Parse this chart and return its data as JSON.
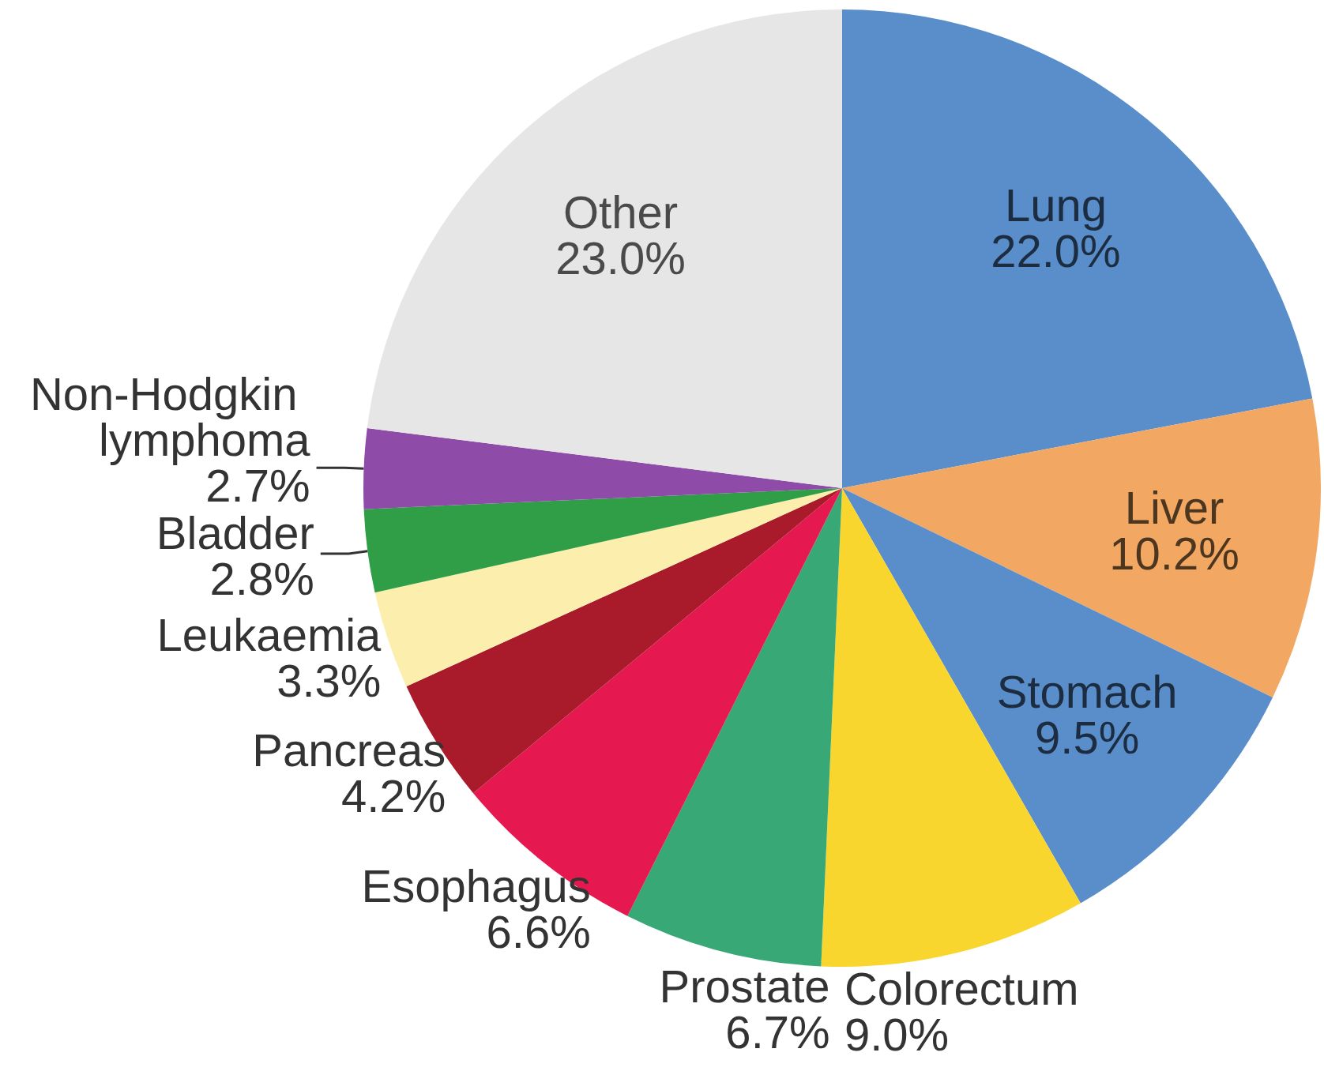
{
  "chart_data": {
    "type": "pie",
    "categories": [
      "Lung",
      "Liver",
      "Stomach",
      "Colorectum",
      "Prostate",
      "Esophagus",
      "Pancreas",
      "Leukaemia",
      "Bladder",
      "Non-Hodgkin lymphoma",
      "Other"
    ],
    "values": [
      22.0,
      10.2,
      9.5,
      9.0,
      6.7,
      6.6,
      4.2,
      3.3,
      2.8,
      2.7,
      23.0
    ],
    "colors": [
      "#5a8ecb",
      "#f2a863",
      "#5a8ecb",
      "#f9d62e",
      "#38a876",
      "#e5194f",
      "#a91b2a",
      "#fcefad",
      "#2f9e47",
      "#8e4ba8",
      "#e6e6e6"
    ],
    "value_labels": [
      "22.0%",
      "10.2%",
      "9.5%",
      "9.0%",
      "6.7%",
      "6.6%",
      "4.2%",
      "3.3%",
      "2.8%",
      "2.7%",
      "23.0%"
    ],
    "legend": false
  }
}
